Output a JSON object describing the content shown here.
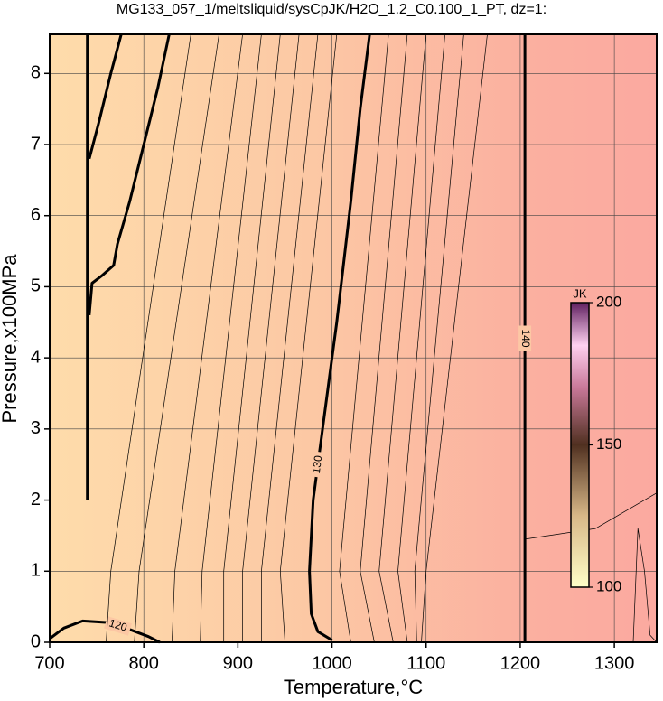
{
  "chart_data": {
    "type": "contour",
    "title": "MG133_057_1/meltsliquid/sysCpJK/H2O_1.2_C0.100_1_PT, dz=1:",
    "x_label": "Temperature,°C",
    "y_label": "Pressure,x100MPa",
    "xlim": [
      700,
      1345
    ],
    "ylim": [
      0,
      8.55
    ],
    "xticks": [
      700,
      800,
      900,
      1000,
      1100,
      1200,
      1300
    ],
    "yticks": [
      0,
      1,
      2,
      3,
      4,
      5,
      6,
      7,
      8
    ],
    "grid": true,
    "contours": [
      {
        "level": 130,
        "weight": "bold",
        "x": [
          1040,
          1030,
          1020,
          1005,
          990,
          980,
          976,
          978,
          985,
          1000
        ],
        "y": [
          8.55,
          7.5,
          6.2,
          4.5,
          3.0,
          2.0,
          1.0,
          0.4,
          0.15,
          0.03
        ]
      },
      {
        "level": 140,
        "weight": "bold",
        "x": [
          1205,
          1205
        ],
        "y": [
          8.55,
          0
        ]
      },
      {
        "level": 120,
        "weight": "bold",
        "x": [
          700,
          715,
          735,
          760,
          785,
          805,
          817
        ],
        "y": [
          0.05,
          0.2,
          0.3,
          0.28,
          0.18,
          0.08,
          0
        ]
      },
      {
        "weight": "bold",
        "x": [
          740,
          740
        ],
        "y": [
          8.55,
          2.0
        ]
      },
      {
        "weight": "bold",
        "x": [
          827,
          815,
          800,
          785,
          772,
          768,
          755,
          745,
          742
        ],
        "y": [
          8.55,
          7.8,
          7.0,
          6.2,
          5.6,
          5.3,
          5.15,
          5.05,
          4.6
        ]
      },
      {
        "weight": "bold",
        "x": [
          776,
          765,
          752,
          742
        ],
        "y": [
          8.55,
          8.0,
          7.3,
          6.8
        ]
      },
      {
        "x": [
          760,
          765,
          850
        ],
        "y": [
          0,
          1,
          8.55
        ]
      },
      {
        "x": [
          790,
          795,
          880
        ],
        "y": [
          0,
          1,
          8.55
        ]
      },
      {
        "x": [
          830,
          833,
          905
        ],
        "y": [
          0,
          1,
          8.55
        ]
      },
      {
        "x": [
          860,
          862,
          925
        ],
        "y": [
          0,
          1,
          8.55
        ]
      },
      {
        "x": [
          885,
          885,
          945
        ],
        "y": [
          0,
          1,
          8.55
        ]
      },
      {
        "x": [
          905,
          905,
          965
        ],
        "y": [
          0,
          1,
          8.55
        ]
      },
      {
        "x": [
          925,
          925,
          985
        ],
        "y": [
          0,
          1,
          8.55
        ]
      },
      {
        "x": [
          950,
          945,
          1005
        ],
        "y": [
          0,
          1,
          8.55
        ]
      },
      {
        "x": [
          1020,
          1008,
          1060
        ],
        "y": [
          0,
          1,
          8.55
        ]
      },
      {
        "x": [
          1045,
          1030,
          1080
        ],
        "y": [
          0,
          1,
          8.55
        ]
      },
      {
        "x": [
          1065,
          1050,
          1100
        ],
        "y": [
          0,
          1,
          8.55
        ]
      },
      {
        "x": [
          1080,
          1070,
          1120
        ],
        "y": [
          0,
          1,
          8.55
        ]
      },
      {
        "x": [
          1090,
          1088,
          1140
        ],
        "y": [
          0,
          1,
          8.55
        ]
      },
      {
        "x": [
          1095,
          1100,
          1165
        ],
        "y": [
          0,
          1,
          8.55
        ]
      },
      {
        "x": [
          1205,
          1280,
          1345
        ],
        "y": [
          1.45,
          1.6,
          2.1
        ]
      },
      {
        "x": [
          1320,
          1325,
          1332,
          1338,
          1345
        ],
        "y": [
          0,
          1.6,
          1.0,
          0.1,
          0
        ]
      }
    ],
    "colorbar": {
      "label": "JK",
      "lim": [
        100,
        200
      ],
      "ticks": [
        100,
        150,
        200
      ]
    }
  }
}
